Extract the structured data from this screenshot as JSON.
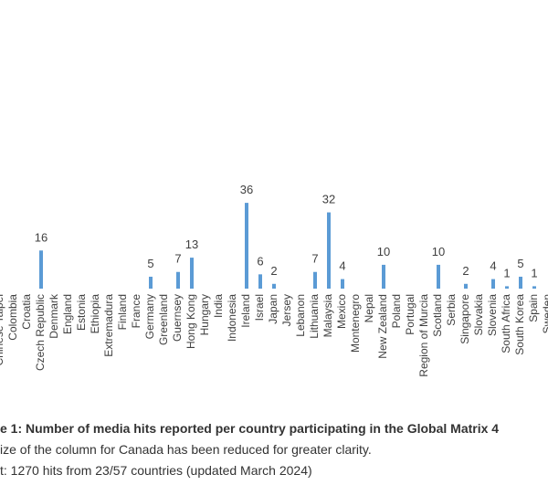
{
  "chart_data": {
    "type": "bar",
    "categories": [
      "Chinese Taipei",
      "Colombia",
      "Croatia",
      "Czech Republic",
      "Denmark",
      "England",
      "Estonia",
      "Ethiopia",
      "Extremadura",
      "Finland",
      "France",
      "Germany",
      "Greenland",
      "Guernsey",
      "Hong Kong",
      "Hungary",
      "India",
      "Indonesia",
      "Ireland",
      "Israel",
      "Japan",
      "Jersey",
      "Lebanon",
      "Lithuania",
      "Malaysia",
      "Mexico",
      "Montenegro",
      "Nepal",
      "New Zealand",
      "Poland",
      "Portugal",
      "Region of Murcia",
      "Scotland",
      "Serbia",
      "Singapore",
      "Slovakia",
      "Slovenia",
      "South Africa",
      "South Korea",
      "Spain",
      "Sweden"
    ],
    "values": [
      null,
      null,
      null,
      16,
      null,
      null,
      null,
      null,
      null,
      null,
      null,
      5,
      null,
      7,
      13,
      null,
      null,
      null,
      36,
      6,
      2,
      null,
      null,
      7,
      32,
      4,
      null,
      null,
      10,
      null,
      null,
      null,
      10,
      null,
      2,
      null,
      4,
      1,
      5,
      1,
      null
    ],
    "color": "#5b9bd5",
    "ylim": [
      0,
      120
    ],
    "caption": [
      "e 1: Number of media hits reported per country participating in the Global Matrix 4",
      "ize of the column for Canada has been reduced for greater clarity.",
      "t: 1270 hits from 23/57 countries (updated March 2024)"
    ]
  }
}
